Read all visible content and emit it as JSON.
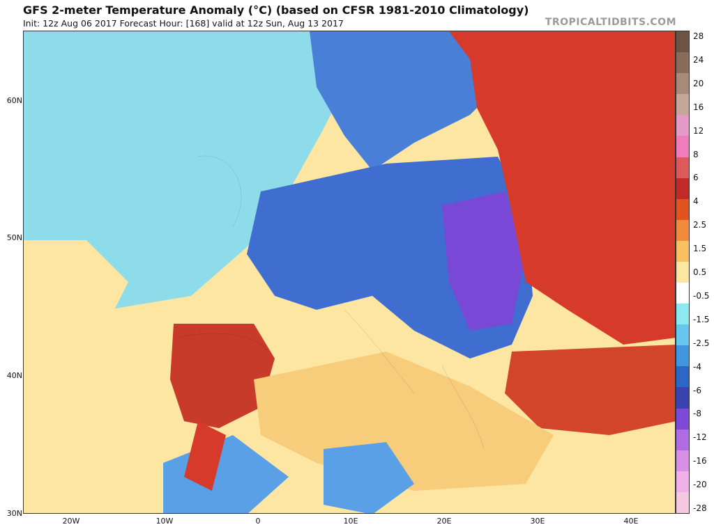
{
  "header": {
    "title": "GFS 2-meter Temperature Anomaly (°C) (based on CFSR 1981-2010 Climatology)",
    "subtitle": "Init: 12z Aug 06 2017   Forecast Hour: [168]   valid at 12z Sun, Aug 13 2017",
    "brand": "TROPICALTIDBITS.COM"
  },
  "map": {
    "lat_labels": [
      "60N",
      "50N",
      "40N",
      "30N"
    ],
    "lon_labels": [
      "20W",
      "10W",
      "0",
      "10E",
      "20E",
      "30E",
      "40E"
    ]
  },
  "colorbar": {
    "labels": [
      "28",
      "24",
      "20",
      "16",
      "12",
      "8",
      "6",
      "4",
      "2.5",
      "1.5",
      "0.5",
      "-0.5",
      "-1.5",
      "-2.5",
      "-4",
      "-6",
      "-8",
      "-12",
      "-16",
      "-20",
      "-28"
    ],
    "colors": [
      "#6b5346",
      "#8a6a58",
      "#a98a7a",
      "#c7a69a",
      "#e39bc6",
      "#f07cbc",
      "#de5a5a",
      "#c22a2a",
      "#e2541f",
      "#f08a3c",
      "#f7c063",
      "#fde6a2",
      "#ffffff",
      "#8ee8f0",
      "#67c6ec",
      "#4196e0",
      "#2c66c6",
      "#3a42b0",
      "#7d49d6",
      "#b06ce2",
      "#d88fe6",
      "#f0b0e8",
      "#f5c8e0"
    ]
  },
  "regions": [
    {
      "name": "atlantic-cool",
      "color": "#8edcea"
    },
    {
      "name": "atlantic-neutral",
      "color": "#fde6a2"
    },
    {
      "name": "central-europe-cold",
      "color": "#3f6ed0"
    },
    {
      "name": "poland-very-cold",
      "color": "#7a48d6"
    },
    {
      "name": "russia-warm",
      "color": "#d63a2a"
    },
    {
      "name": "mediterranean-warm",
      "color": "#f7cc7a"
    },
    {
      "name": "iberia-hot",
      "color": "#c83a2a"
    },
    {
      "name": "turkey-hot",
      "color": "#d2452a"
    },
    {
      "name": "scandinavia-cold",
      "color": "#4a7fd8"
    },
    {
      "name": "north-africa-cool",
      "color": "#5aa0e6"
    }
  ]
}
